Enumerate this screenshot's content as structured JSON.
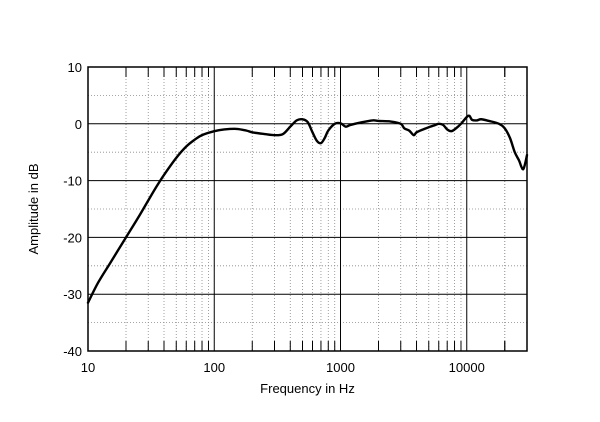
{
  "chart_data": {
    "type": "line",
    "title": "",
    "xlabel": "Frequency in Hz",
    "ylabel": "Amplitude in dB",
    "x_scale": "log",
    "xlim": [
      10,
      30000
    ],
    "ylim": [
      -40,
      10
    ],
    "x_ticks": [
      10,
      100,
      1000,
      10000
    ],
    "x_tick_labels": [
      "10",
      "100",
      "1000",
      "10000"
    ],
    "y_ticks": [
      10,
      0,
      -10,
      -20,
      -30,
      -40
    ],
    "y_tick_labels": [
      "10",
      "0",
      "-10",
      "-20",
      "-30",
      "-40"
    ],
    "grid": true,
    "legend": "none",
    "colors": {
      "line": "#000000",
      "grid": "#888888",
      "frame": "#000000"
    },
    "series": [
      {
        "x": [
          10,
          12,
          15,
          20,
          25,
          30,
          35,
          40,
          50,
          60,
          70,
          80,
          100,
          120,
          150,
          180,
          200,
          250,
          300,
          350,
          400,
          450,
          500,
          550,
          600,
          650,
          700,
          750,
          800,
          900,
          1000,
          1100,
          1200,
          1500,
          1800,
          2000,
          2500,
          3000,
          3200,
          3500,
          3800,
          4000,
          4500,
          5000,
          5500,
          6000,
          6500,
          7000,
          7500,
          8000,
          9000,
          10000,
          10500,
          11000,
          12000,
          13000,
          15000,
          18000,
          20000,
          22000,
          24000,
          26000,
          27000,
          28000,
          29000,
          30000
        ],
        "y": [
          -31.5,
          -28,
          -24.5,
          -20,
          -16.5,
          -13.5,
          -11,
          -9,
          -6,
          -4,
          -2.8,
          -2,
          -1.3,
          -1,
          -0.9,
          -1.2,
          -1.5,
          -1.8,
          -2.0,
          -1.8,
          -0.5,
          0.6,
          0.8,
          0.3,
          -1.5,
          -3.0,
          -3.4,
          -2.5,
          -1.2,
          0,
          0.1,
          -0.5,
          -0.2,
          0.3,
          0.6,
          0.5,
          0.4,
          0,
          -0.8,
          -1.2,
          -2.0,
          -1.5,
          -1.0,
          -0.6,
          -0.3,
          0,
          -0.2,
          -1.0,
          -1.3,
          -1.0,
          0,
          1.2,
          1.4,
          0.7,
          0.6,
          0.8,
          0.5,
          0,
          -0.8,
          -2.5,
          -5,
          -6.5,
          -7.5,
          -8.0,
          -7.0,
          -5.5
        ]
      }
    ]
  }
}
